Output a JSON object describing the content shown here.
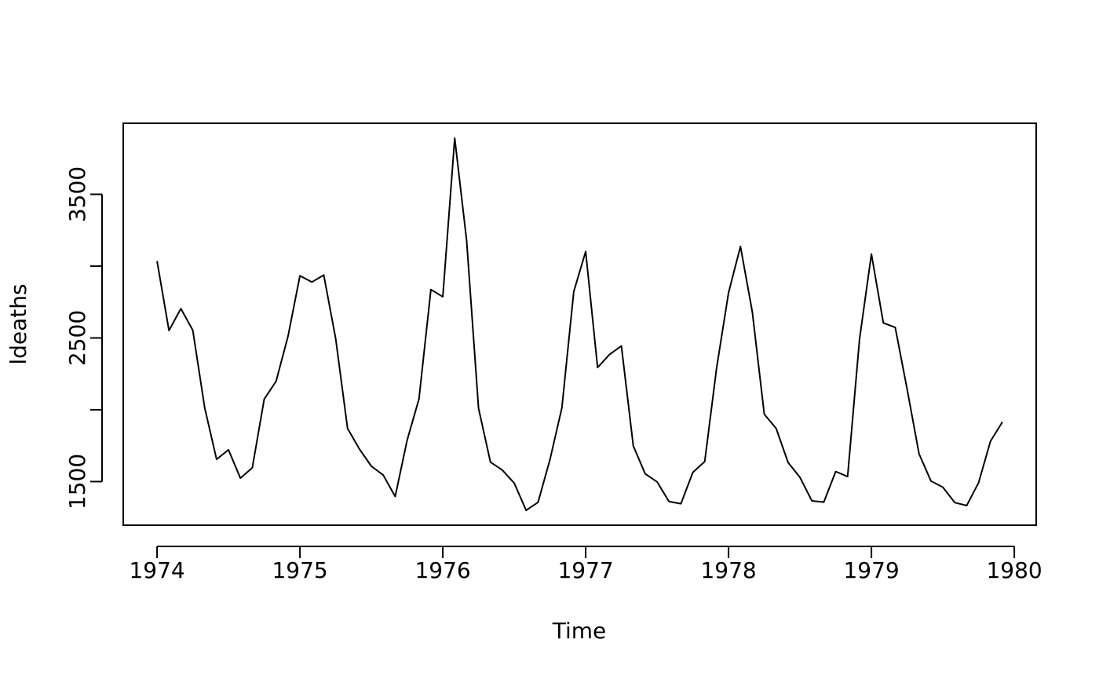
{
  "chart_data": {
    "type": "line",
    "xlabel": "Time",
    "ylabel": "ldeaths",
    "x_start": 1974,
    "frequency": 12,
    "series": [
      {
        "name": "ldeaths",
        "color": "#000000",
        "values": [
          3035,
          2552,
          2704,
          2554,
          2014,
          1655,
          1721,
          1524,
          1596,
          2074,
          2199,
          2512,
          2933,
          2889,
          2938,
          2497,
          1870,
          1726,
          1607,
          1545,
          1396,
          1787,
          2076,
          2837,
          2787,
          3891,
          3179,
          2011,
          1636,
          1580,
          1489,
          1300,
          1356,
          1653,
          2013,
          2823,
          3102,
          2294,
          2385,
          2444,
          1748,
          1554,
          1498,
          1361,
          1346,
          1564,
          1640,
          2293,
          2815,
          3137,
          2679,
          1969,
          1870,
          1633,
          1529,
          1366,
          1357,
          1570,
          1535,
          2491,
          3084,
          2605,
          2573,
          2143,
          1693,
          1504,
          1461,
          1354,
          1333,
          1492,
          1781,
          1915
        ]
      }
    ],
    "xlim": [
      1973.7633,
      1980.1533
    ],
    "xticks": [
      1974,
      1975,
      1976,
      1977,
      1978,
      1979,
      1980
    ],
    "ylim": [
      1196.36,
      3994.64
    ],
    "yticks": [
      1500,
      2000,
      2500,
      3000,
      3500
    ],
    "grid": false
  }
}
